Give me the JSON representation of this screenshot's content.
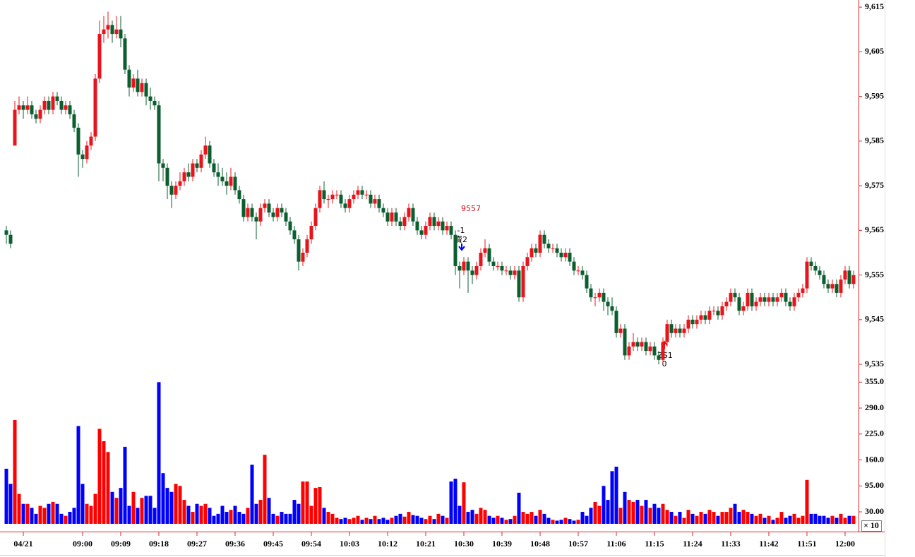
{
  "chart_data": {
    "type": "candlestick",
    "up_color": "#e8141b",
    "down_color": "#0b5e2e",
    "volume_up_color": "#ff0000",
    "volume_down_color": "#0000ff",
    "ylim": [
      9532.8,
      9616.6
    ],
    "yticks": [
      {
        "value": 9615,
        "label": "9,615"
      },
      {
        "value": 9605,
        "label": "9,605"
      },
      {
        "value": 9595,
        "label": "9,595"
      },
      {
        "value": 9585,
        "label": "9,585"
      },
      {
        "value": 9575,
        "label": "9,575"
      },
      {
        "value": 9565,
        "label": "9,565"
      },
      {
        "value": 9555,
        "label": "9,555"
      },
      {
        "value": 9545,
        "label": "9,545"
      },
      {
        "value": 9535,
        "label": "9,535"
      }
    ],
    "vlim": [
      0,
      375
    ],
    "vticks": [
      {
        "value": 355,
        "label": "355.0"
      },
      {
        "value": 290,
        "label": "290.0"
      },
      {
        "value": 225,
        "label": "225.0"
      },
      {
        "value": 160,
        "label": "160.0"
      },
      {
        "value": 95,
        "label": "95.00"
      },
      {
        "value": 30,
        "label": "30.00"
      }
    ],
    "volume_unit": "× 10",
    "xlim": [
      -1.5,
      201.17
    ],
    "xticks": [
      {
        "value": 4,
        "label": "04/21"
      },
      {
        "value": 18,
        "label": "09:00"
      },
      {
        "value": 27,
        "label": "09:09"
      },
      {
        "value": 36,
        "label": "09:18"
      },
      {
        "value": 45,
        "label": "09:27"
      },
      {
        "value": 54,
        "label": "09:36"
      },
      {
        "value": 63,
        "label": "09:45"
      },
      {
        "value": 72,
        "label": "09:54"
      },
      {
        "value": 81,
        "label": "10:03"
      },
      {
        "value": 90,
        "label": "10:12"
      },
      {
        "value": 99,
        "label": "10:21"
      },
      {
        "value": 108,
        "label": "10:30"
      },
      {
        "value": 117,
        "label": "10:39"
      },
      {
        "value": 126,
        "label": "10:48"
      },
      {
        "value": 135,
        "label": "10:57"
      },
      {
        "value": 144,
        "label": "11:06"
      },
      {
        "value": 153,
        "label": "11:15"
      },
      {
        "value": 162,
        "label": "11:24"
      },
      {
        "value": 171,
        "label": "11:33"
      },
      {
        "value": 180,
        "label": "11:42"
      },
      {
        "value": 189,
        "label": "11:51"
      },
      {
        "value": 198,
        "label": "12:00"
      }
    ],
    "annotations": [
      "9557",
      "-1",
      "賣2",
      "ZS1",
      "0"
    ],
    "ohlc": [
      [
        9565,
        9566,
        9562,
        9564
      ],
      [
        9564,
        9565,
        9561,
        9562
      ],
      [
        9584,
        9594,
        9584,
        9592
      ],
      [
        9592,
        9595,
        9591,
        9593
      ],
      [
        9593,
        9594,
        9590,
        9592
      ],
      [
        9592,
        9595,
        9591,
        9593
      ],
      [
        9593,
        9594,
        9590,
        9591
      ],
      [
        9591,
        9592,
        9589,
        9590
      ],
      [
        9590,
        9593,
        9589,
        9592
      ],
      [
        9592,
        9595,
        9591,
        9594
      ],
      [
        9594,
        9595,
        9591,
        9592
      ],
      [
        9592,
        9596,
        9591,
        9595
      ],
      [
        9595,
        9596,
        9593,
        9594
      ],
      [
        9594,
        9595,
        9591,
        9592
      ],
      [
        9592,
        9594,
        9591,
        9593
      ],
      [
        9593,
        9594,
        9590,
        9591
      ],
      [
        9591,
        9592,
        9587,
        9588
      ],
      [
        9588,
        9589,
        9577,
        9582
      ],
      [
        9582,
        9583,
        9579,
        9581
      ],
      [
        9581,
        9585,
        9580,
        9584
      ],
      [
        9584,
        9587,
        9583,
        9586
      ],
      [
        9586,
        9600,
        9585,
        9599
      ],
      [
        9599,
        9612,
        9598,
        9609
      ],
      [
        9609,
        9613,
        9607,
        9610
      ],
      [
        9610,
        9614,
        9608,
        9611
      ],
      [
        9611,
        9612,
        9607,
        9609
      ],
      [
        9609,
        9613,
        9608,
        9610
      ],
      [
        9610,
        9613,
        9606,
        9608
      ],
      [
        9608,
        9609,
        9600,
        9601
      ],
      [
        9601,
        9602,
        9595,
        9597
      ],
      [
        9597,
        9600,
        9596,
        9599
      ],
      [
        9599,
        9601,
        9595,
        9596
      ],
      [
        9596,
        9599,
        9595,
        9598
      ],
      [
        9598,
        9599,
        9593,
        9595
      ],
      [
        9595,
        9597,
        9592,
        9594
      ],
      [
        9594,
        9595,
        9592,
        9593
      ],
      [
        9593,
        9594,
        9576,
        9580
      ],
      [
        9580,
        9581,
        9576,
        9579
      ],
      [
        9579,
        9580,
        9572,
        9575
      ],
      [
        9575,
        9576,
        9570,
        9573
      ],
      [
        9573,
        9576,
        9572,
        9575
      ],
      [
        9575,
        9578,
        9574,
        9576
      ],
      [
        9576,
        9579,
        9575,
        9578
      ],
      [
        9578,
        9580,
        9576,
        9577
      ],
      [
        9577,
        9581,
        9576,
        9580
      ],
      [
        9580,
        9581,
        9578,
        9579
      ],
      [
        9579,
        9583,
        9578,
        9582
      ],
      [
        9582,
        9586,
        9581,
        9584
      ],
      [
        9584,
        9585,
        9579,
        9580
      ],
      [
        9580,
        9581,
        9577,
        9578
      ],
      [
        9578,
        9580,
        9575,
        9577
      ],
      [
        9577,
        9579,
        9575,
        9576
      ],
      [
        9576,
        9578,
        9573,
        9575
      ],
      [
        9575,
        9579,
        9574,
        9577
      ],
      [
        9577,
        9578,
        9573,
        9574
      ],
      [
        9574,
        9575,
        9571,
        9572
      ],
      [
        9572,
        9573,
        9567,
        9568
      ],
      [
        9568,
        9571,
        9567,
        9570
      ],
      [
        9570,
        9571,
        9567,
        9568
      ],
      [
        9568,
        9569,
        9563,
        9567
      ],
      [
        9567,
        9571,
        9566,
        9570
      ],
      [
        9570,
        9572,
        9569,
        9571
      ],
      [
        9571,
        9572,
        9568,
        9569
      ],
      [
        9569,
        9570,
        9567,
        9568
      ],
      [
        9568,
        9571,
        9567,
        9570
      ],
      [
        9570,
        9571,
        9568,
        9569
      ],
      [
        9569,
        9570,
        9566,
        9567
      ],
      [
        9567,
        9568,
        9564,
        9565
      ],
      [
        9565,
        9566,
        9562,
        9563
      ],
      [
        9563,
        9564,
        9556,
        9558
      ],
      [
        9558,
        9561,
        9557,
        9560
      ],
      [
        9560,
        9564,
        9559,
        9563
      ],
      [
        9563,
        9567,
        9562,
        9566
      ],
      [
        9566,
        9571,
        9565,
        9570
      ],
      [
        9570,
        9575,
        9569,
        9574
      ],
      [
        9574,
        9576,
        9571,
        9572
      ],
      [
        9572,
        9573,
        9570,
        9572
      ],
      [
        9572,
        9574,
        9571,
        9573
      ],
      [
        9573,
        9574,
        9572,
        9573
      ],
      [
        9573,
        9574,
        9570,
        9571
      ],
      [
        9571,
        9572,
        9569,
        9570
      ],
      [
        9570,
        9573,
        9569,
        9572
      ],
      [
        9572,
        9574,
        9571,
        9573
      ],
      [
        9573,
        9575,
        9572,
        9574
      ],
      [
        9574,
        9575,
        9572,
        9573
      ],
      [
        9573,
        9574,
        9572,
        9573
      ],
      [
        9573,
        9574,
        9570,
        9571
      ],
      [
        9571,
        9573,
        9570,
        9572
      ],
      [
        9572,
        9573,
        9569,
        9570
      ],
      [
        9570,
        9571,
        9568,
        9569
      ],
      [
        9569,
        9570,
        9566,
        9567
      ],
      [
        9567,
        9570,
        9566,
        9569
      ],
      [
        9569,
        9570,
        9566,
        9567
      ],
      [
        9567,
        9568,
        9565,
        9566
      ],
      [
        9566,
        9569,
        9565,
        9568
      ],
      [
        9568,
        9571,
        9567,
        9570
      ],
      [
        9570,
        9571,
        9566,
        9567
      ],
      [
        9567,
        9568,
        9564,
        9565
      ],
      [
        9565,
        9566,
        9563,
        9564
      ],
      [
        9564,
        9567,
        9563,
        9566
      ],
      [
        9566,
        9569,
        9565,
        9568
      ],
      [
        9568,
        9569,
        9565,
        9566
      ],
      [
        9566,
        9568,
        9565,
        9567
      ],
      [
        9567,
        9568,
        9564,
        9565
      ],
      [
        9565,
        9567,
        9564,
        9566
      ],
      [
        9566,
        9567,
        9563,
        9564
      ],
      [
        9564,
        9565,
        9555,
        9557
      ],
      [
        9557,
        9558,
        9552,
        9556
      ],
      [
        9556,
        9559,
        9555,
        9558
      ],
      [
        9558,
        9559,
        9551,
        9556
      ],
      [
        9556,
        9557,
        9553,
        9555
      ],
      [
        9555,
        9558,
        9554,
        9557
      ],
      [
        9557,
        9561,
        9556,
        9560
      ],
      [
        9560,
        9563,
        9559,
        9561
      ],
      [
        9561,
        9562,
        9557,
        9558
      ],
      [
        9558,
        9559,
        9556,
        9557
      ],
      [
        9557,
        9558,
        9556,
        9557
      ],
      [
        9557,
        9558,
        9555,
        9556
      ],
      [
        9556,
        9557,
        9555,
        9556
      ],
      [
        9556,
        9557,
        9554,
        9555
      ],
      [
        9555,
        9557,
        9554,
        9556
      ],
      [
        9556,
        9557,
        9549,
        9550
      ],
      [
        9550,
        9558,
        9549,
        9557
      ],
      [
        9557,
        9560,
        9556,
        9559
      ],
      [
        9559,
        9562,
        9558,
        9561
      ],
      [
        9561,
        9562,
        9559,
        9560
      ],
      [
        9560,
        9565,
        9559,
        9564
      ],
      [
        9564,
        9565,
        9561,
        9562
      ],
      [
        9562,
        9563,
        9560,
        9561
      ],
      [
        9561,
        9562,
        9560,
        9561
      ],
      [
        9561,
        9562,
        9559,
        9560
      ],
      [
        9560,
        9561,
        9558,
        9559
      ],
      [
        9559,
        9561,
        9558,
        9560
      ],
      [
        9560,
        9561,
        9557,
        9558
      ],
      [
        9558,
        9559,
        9555,
        9556
      ],
      [
        9556,
        9557,
        9555,
        9556
      ],
      [
        9556,
        9557,
        9554,
        9555
      ],
      [
        9555,
        9556,
        9551,
        9552
      ],
      [
        9552,
        9553,
        9549,
        9550
      ],
      [
        9550,
        9551,
        9548,
        9550
      ],
      [
        9550,
        9552,
        9549,
        9551
      ],
      [
        9551,
        9552,
        9547,
        9549
      ],
      [
        9549,
        9550,
        9546,
        9548
      ],
      [
        9548,
        9550,
        9546,
        9547
      ],
      [
        9547,
        9548,
        9541,
        9542
      ],
      [
        9542,
        9544,
        9541,
        9543
      ],
      [
        9543,
        9544,
        9536,
        9537
      ],
      [
        9537,
        9540,
        9536,
        9539
      ],
      [
        9539,
        9542,
        9538,
        9540
      ],
      [
        9540,
        9541,
        9538,
        9539
      ],
      [
        9539,
        9541,
        9538,
        9540
      ],
      [
        9540,
        9541,
        9537,
        9538
      ],
      [
        9538,
        9540,
        9537,
        9539
      ],
      [
        9539,
        9540,
        9536,
        9537
      ],
      [
        9537,
        9538,
        9535,
        9536
      ],
      [
        9536,
        9541,
        9535,
        9540
      ],
      [
        9540,
        9545,
        9539,
        9544
      ],
      [
        9544,
        9545,
        9541,
        9542
      ],
      [
        9542,
        9544,
        9541,
        9543
      ],
      [
        9543,
        9544,
        9541,
        9542
      ],
      [
        9542,
        9544,
        9541,
        9543
      ],
      [
        9543,
        9546,
        9542,
        9545
      ],
      [
        9545,
        9546,
        9543,
        9544
      ],
      [
        9544,
        9546,
        9543,
        9545
      ],
      [
        9545,
        9547,
        9544,
        9546
      ],
      [
        9546,
        9547,
        9544,
        9545
      ],
      [
        9545,
        9548,
        9544,
        9547
      ],
      [
        9547,
        9548,
        9546,
        9547
      ],
      [
        9547,
        9548,
        9545,
        9546
      ],
      [
        9546,
        9549,
        9545,
        9548
      ],
      [
        9548,
        9550,
        9547,
        9549
      ],
      [
        9549,
        9552,
        9548,
        9551
      ],
      [
        9551,
        9552,
        9549,
        9550
      ],
      [
        9550,
        9551,
        9546,
        9547
      ],
      [
        9547,
        9549,
        9546,
        9548
      ],
      [
        9548,
        9552,
        9547,
        9551
      ],
      [
        9551,
        9552,
        9547,
        9548
      ],
      [
        9548,
        9550,
        9547,
        9549
      ],
      [
        9549,
        9551,
        9548,
        9550
      ],
      [
        9550,
        9551,
        9548,
        9549
      ],
      [
        9549,
        9551,
        9548,
        9550
      ],
      [
        9550,
        9551,
        9548,
        9549
      ],
      [
        9549,
        9551,
        9548,
        9550
      ],
      [
        9550,
        9552,
        9549,
        9551
      ],
      [
        9551,
        9552,
        9548,
        9549
      ],
      [
        9549,
        9550,
        9547,
        9548
      ],
      [
        9548,
        9551,
        9547,
        9550
      ],
      [
        9550,
        9552,
        9549,
        9551
      ],
      [
        9551,
        9553,
        9550,
        9552
      ],
      [
        9552,
        9559,
        9551,
        9558
      ],
      [
        9558,
        9559,
        9556,
        9557
      ],
      [
        9557,
        9558,
        9555,
        9556
      ],
      [
        9556,
        9557,
        9554,
        9555
      ],
      [
        9555,
        9556,
        9552,
        9553
      ],
      [
        9553,
        9554,
        9551,
        9552
      ],
      [
        9552,
        9554,
        9551,
        9553
      ],
      [
        9553,
        9554,
        9550,
        9551
      ],
      [
        9551,
        9555,
        9550,
        9554
      ],
      [
        9554,
        9557,
        9553,
        9556
      ],
      [
        9556,
        9557,
        9552,
        9553
      ],
      [
        9553,
        9556,
        9552,
        9555
      ]
    ],
    "volume": [
      138,
      100,
      260,
      75,
      50,
      50,
      40,
      25,
      45,
      40,
      50,
      55,
      50,
      25,
      20,
      30,
      40,
      245,
      100,
      50,
      45,
      75,
      238,
      207,
      180,
      80,
      65,
      90,
      193,
      45,
      80,
      40,
      65,
      70,
      70,
      40,
      355,
      127,
      90,
      80,
      100,
      95,
      60,
      45,
      30,
      50,
      45,
      50,
      40,
      20,
      25,
      45,
      30,
      35,
      45,
      30,
      25,
      40,
      148,
      50,
      60,
      173,
      65,
      25,
      20,
      30,
      25,
      25,
      60,
      50,
      106,
      106,
      45,
      90,
      92,
      40,
      30,
      25,
      15,
      12,
      15,
      12,
      15,
      20,
      10,
      15,
      12,
      20,
      12,
      15,
      10,
      15,
      20,
      25,
      18,
      30,
      22,
      20,
      15,
      12,
      20,
      12,
      25,
      20,
      15,
      106,
      113,
      45,
      104,
      30,
      35,
      25,
      40,
      35,
      20,
      15,
      20,
      15,
      10,
      12,
      20,
      78,
      30,
      25,
      30,
      20,
      35,
      25,
      15,
      10,
      8,
      10,
      15,
      12,
      8,
      10,
      30,
      20,
      40,
      55,
      45,
      95,
      60,
      132,
      143,
      40,
      80,
      60,
      55,
      60,
      45,
      60,
      40,
      50,
      40,
      50,
      35,
      30,
      20,
      30,
      15,
      35,
      25,
      20,
      30,
      25,
      35,
      30,
      20,
      30,
      30,
      40,
      50,
      30,
      35,
      30,
      25,
      20,
      25,
      15,
      20,
      10,
      15,
      30,
      15,
      20,
      25,
      15,
      20,
      110,
      25,
      25,
      20,
      20,
      15,
      20,
      15,
      25,
      15,
      20,
      20
    ]
  }
}
